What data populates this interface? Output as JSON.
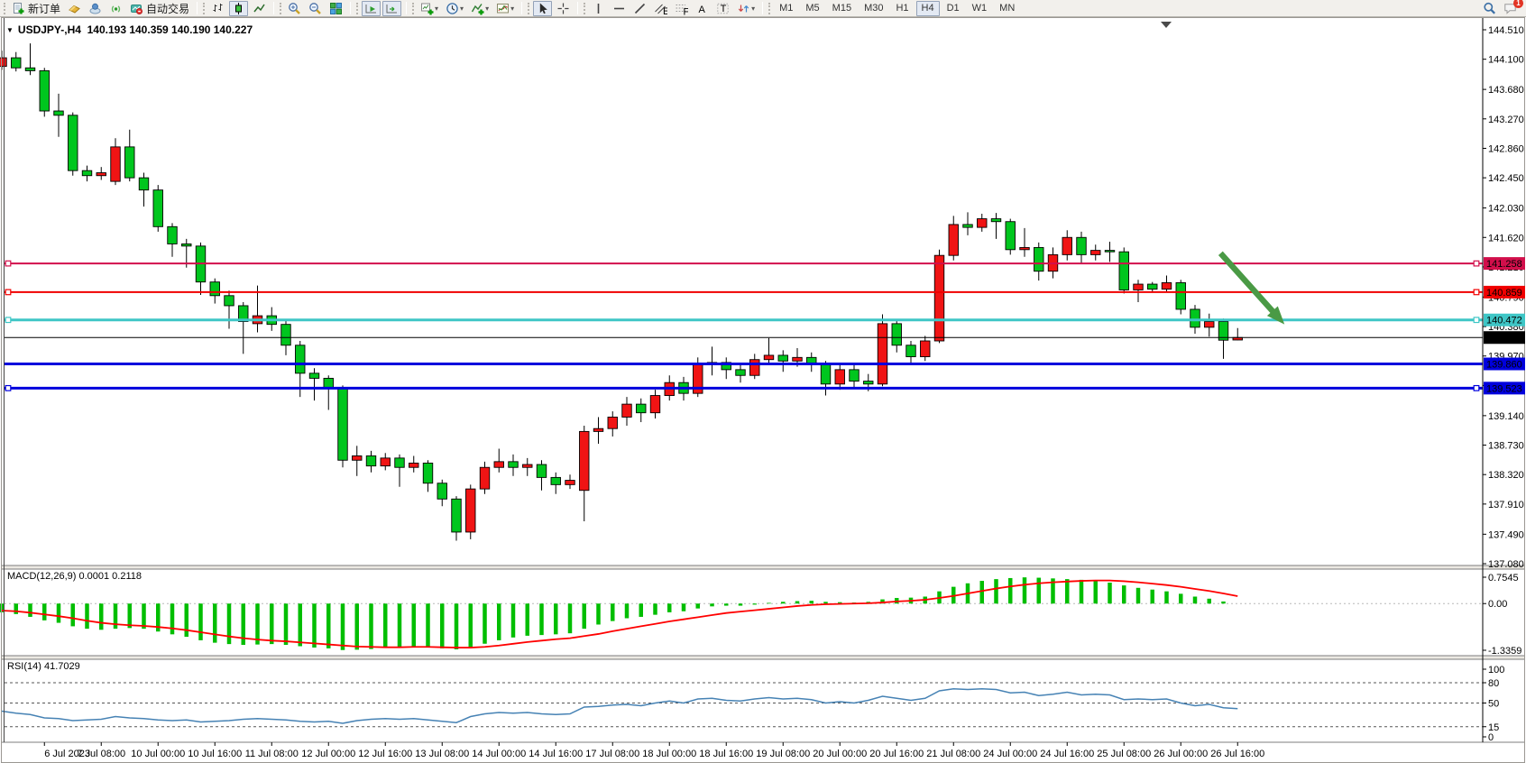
{
  "toolbar": {
    "groups": [
      {
        "items": [
          {
            "name": "new-order",
            "icon": "new-order-icon",
            "label": "新订单"
          },
          {
            "name": "market-watch",
            "icon": "gold-bar-icon"
          },
          {
            "name": "virtual-hosting",
            "icon": "hosting-icon"
          },
          {
            "name": "signals",
            "icon": "signal-icon"
          },
          {
            "name": "autotrading",
            "icon": "autotrade-icon",
            "label": "自动交易"
          }
        ]
      },
      {
        "items": [
          {
            "name": "bar-chart-mode",
            "icon": "bar-chart-icon"
          },
          {
            "name": "candlestick-mode",
            "icon": "candlestick-icon",
            "active": true
          },
          {
            "name": "line-chart-mode",
            "icon": "line-chart-icon"
          }
        ]
      },
      {
        "items": [
          {
            "name": "zoom-in",
            "icon": "zoom-in-icon"
          },
          {
            "name": "zoom-out",
            "icon": "zoom-out-icon"
          },
          {
            "name": "tile-windows",
            "icon": "tile-windows-icon"
          }
        ]
      },
      {
        "items": [
          {
            "name": "auto-scroll",
            "icon": "auto-scroll-icon",
            "active": true
          },
          {
            "name": "chart-shift",
            "icon": "chart-shift-icon",
            "active": true
          }
        ]
      },
      {
        "items": [
          {
            "name": "new-chart",
            "icon": "new-chart-icon",
            "dropdown": true
          },
          {
            "name": "periods",
            "icon": "clock-icon",
            "dropdown": true
          },
          {
            "name": "indicators",
            "icon": "indicators-icon",
            "dropdown": true
          },
          {
            "name": "templates",
            "icon": "template-icon",
            "dropdown": true
          }
        ]
      },
      {
        "items": [
          {
            "name": "cursor",
            "icon": "cursor-icon",
            "active": true
          },
          {
            "name": "crosshair",
            "icon": "crosshair-icon"
          }
        ]
      },
      {
        "items": [
          {
            "name": "vertical-line",
            "icon": "vline-icon"
          },
          {
            "name": "horizontal-line",
            "icon": "hline-icon"
          },
          {
            "name": "trendline",
            "icon": "trendline-icon"
          },
          {
            "name": "equidistant-channel",
            "icon": "channel-icon"
          },
          {
            "name": "fibonacci-retracement",
            "icon": "fibonacci-icon"
          },
          {
            "name": "text",
            "icon": "text-icon"
          },
          {
            "name": "text-label",
            "icon": "label-icon"
          },
          {
            "name": "arrows",
            "icon": "arrows-icon",
            "dropdown": true
          }
        ]
      },
      {
        "items": [
          {
            "name": "tf-m1",
            "tf": "M1"
          },
          {
            "name": "tf-m5",
            "tf": "M5"
          },
          {
            "name": "tf-m15",
            "tf": "M15"
          },
          {
            "name": "tf-m30",
            "tf": "M30"
          },
          {
            "name": "tf-h1",
            "tf": "H1"
          },
          {
            "name": "tf-h4",
            "tf": "H4",
            "active": true
          },
          {
            "name": "tf-d1",
            "tf": "D1"
          },
          {
            "name": "tf-w1",
            "tf": "W1"
          },
          {
            "name": "tf-mn",
            "tf": "MN"
          }
        ]
      }
    ],
    "right": [
      {
        "name": "search",
        "icon": "search-icon"
      },
      {
        "name": "notifications",
        "icon": "chat-icon",
        "badge": "1"
      }
    ]
  },
  "chart": {
    "title_symbol": "USDJPY-,H4",
    "title_quote": "140.193 140.359 140.190 140.227",
    "macd_label": "MACD(12,26,9) 0.0001 0.2118",
    "rsi_label": "RSI(14) 41.7029"
  },
  "chart_data": {
    "type": "candlestick",
    "symbol": "USDJPY-",
    "period": "H4",
    "quote": {
      "open": "140.193",
      "high": "140.359",
      "low": "140.190",
      "close": "140.227"
    },
    "bull_color": "#f01414",
    "bear_color": "#00c61e",
    "scale": {
      "top_price": 144.51,
      "bottom_price": 137.08
    },
    "price_ticks": [
      "144.510",
      "144.100",
      "143.680",
      "143.270",
      "142.860",
      "142.450",
      "142.030",
      "141.620",
      "141.210",
      "140.790",
      "140.380",
      "139.970",
      "139.560",
      "139.140",
      "138.730",
      "138.320",
      "137.910",
      "137.490",
      "137.080"
    ],
    "time_labels": [
      "6 Jul 2023",
      "7 Jul 08:00",
      "10 Jul 00:00",
      "10 Jul 16:00",
      "11 Jul 08:00",
      "12 Jul 00:00",
      "12 Jul 16:00",
      "13 Jul 08:00",
      "14 Jul 00:00",
      "14 Jul 16:00",
      "17 Jul 08:00",
      "18 Jul 00:00",
      "18 Jul 16:00",
      "19 Jul 08:00",
      "20 Jul 00:00",
      "20 Jul 16:00",
      "21 Jul 08:00",
      "24 Jul 00:00",
      "24 Jul 16:00",
      "25 Jul 08:00",
      "26 Jul 00:00",
      "26 Jul 16:00"
    ],
    "first_label_bar": 3,
    "label_every_bars": 4,
    "candles": [
      [
        144.0,
        144.22,
        143.95,
        144.12
      ],
      [
        144.12,
        144.2,
        143.93,
        143.98
      ],
      [
        143.98,
        144.32,
        143.88,
        143.94
      ],
      [
        143.94,
        143.98,
        143.3,
        143.38
      ],
      [
        143.38,
        143.62,
        143.02,
        143.32
      ],
      [
        143.32,
        143.36,
        142.48,
        142.55
      ],
      [
        142.55,
        142.62,
        142.4,
        142.48
      ],
      [
        142.48,
        142.6,
        142.42,
        142.52
      ],
      [
        142.4,
        143.0,
        142.35,
        142.88
      ],
      [
        142.88,
        143.12,
        142.4,
        142.45
      ],
      [
        142.45,
        142.52,
        142.05,
        142.28
      ],
      [
        142.28,
        142.35,
        141.7,
        141.77
      ],
      [
        141.77,
        141.82,
        141.35,
        141.53
      ],
      [
        141.53,
        141.6,
        141.2,
        141.5
      ],
      [
        141.5,
        141.55,
        140.82,
        141.0
      ],
      [
        141.0,
        141.05,
        140.7,
        140.81
      ],
      [
        140.81,
        140.88,
        140.35,
        140.67
      ],
      [
        140.67,
        140.72,
        140.0,
        140.45
      ],
      [
        140.42,
        140.95,
        140.3,
        140.53
      ],
      [
        140.53,
        140.65,
        140.32,
        140.41
      ],
      [
        140.41,
        140.48,
        139.98,
        140.12
      ],
      [
        140.12,
        140.18,
        139.4,
        139.73
      ],
      [
        139.73,
        139.8,
        139.35,
        139.66
      ],
      [
        139.66,
        139.7,
        139.22,
        139.53
      ],
      [
        139.53,
        139.56,
        138.42,
        138.52
      ],
      [
        138.52,
        138.72,
        138.3,
        138.58
      ],
      [
        138.58,
        138.65,
        138.35,
        138.44
      ],
      [
        138.44,
        138.62,
        138.38,
        138.55
      ],
      [
        138.55,
        138.6,
        138.15,
        138.42
      ],
      [
        138.42,
        138.58,
        138.35,
        138.48
      ],
      [
        138.48,
        138.52,
        138.08,
        138.2
      ],
      [
        138.2,
        138.25,
        137.88,
        137.98
      ],
      [
        137.98,
        138.02,
        137.4,
        137.52
      ],
      [
        137.52,
        138.18,
        137.42,
        138.12
      ],
      [
        138.12,
        138.5,
        138.05,
        138.42
      ],
      [
        138.42,
        138.68,
        138.35,
        138.5
      ],
      [
        138.5,
        138.6,
        138.3,
        138.42
      ],
      [
        138.42,
        138.55,
        138.3,
        138.46
      ],
      [
        138.46,
        138.52,
        138.1,
        138.28
      ],
      [
        138.28,
        138.35,
        138.05,
        138.18
      ],
      [
        138.18,
        138.32,
        138.12,
        138.24
      ],
      [
        138.1,
        139.0,
        137.67,
        138.92
      ],
      [
        138.92,
        139.12,
        138.75,
        138.96
      ],
      [
        138.96,
        139.2,
        138.85,
        139.12
      ],
      [
        139.12,
        139.4,
        139.0,
        139.3
      ],
      [
        139.3,
        139.38,
        139.05,
        139.18
      ],
      [
        139.18,
        139.5,
        139.1,
        139.42
      ],
      [
        139.42,
        139.7,
        139.35,
        139.6
      ],
      [
        139.6,
        139.68,
        139.35,
        139.45
      ],
      [
        139.45,
        139.95,
        139.4,
        139.85
      ],
      [
        139.85,
        140.1,
        139.7,
        139.88
      ],
      [
        139.88,
        139.95,
        139.65,
        139.78
      ],
      [
        139.78,
        139.85,
        139.6,
        139.7
      ],
      [
        139.7,
        140.0,
        139.65,
        139.92
      ],
      [
        139.92,
        140.22,
        139.85,
        139.98
      ],
      [
        139.98,
        140.05,
        139.75,
        139.9
      ],
      [
        139.9,
        140.08,
        139.82,
        139.95
      ],
      [
        139.95,
        140.02,
        139.75,
        139.85
      ],
      [
        139.85,
        139.9,
        139.42,
        139.58
      ],
      [
        139.58,
        139.85,
        139.5,
        139.78
      ],
      [
        139.78,
        139.85,
        139.52,
        139.62
      ],
      [
        139.62,
        139.72,
        139.48,
        139.58
      ],
      [
        139.58,
        140.55,
        139.55,
        140.42
      ],
      [
        140.42,
        140.48,
        140.02,
        140.12
      ],
      [
        140.12,
        140.18,
        139.85,
        139.96
      ],
      [
        139.96,
        140.25,
        139.9,
        140.18
      ],
      [
        140.18,
        141.45,
        140.15,
        141.37
      ],
      [
        141.37,
        141.92,
        141.3,
        141.8
      ],
      [
        141.8,
        141.97,
        141.65,
        141.76
      ],
      [
        141.76,
        141.95,
        141.7,
        141.88
      ],
      [
        141.88,
        141.96,
        141.6,
        141.84
      ],
      [
        141.84,
        141.88,
        141.38,
        141.45
      ],
      [
        141.45,
        141.75,
        141.35,
        141.48
      ],
      [
        141.48,
        141.55,
        141.02,
        141.15
      ],
      [
        141.15,
        141.48,
        141.05,
        141.38
      ],
      [
        141.38,
        141.72,
        141.3,
        141.62
      ],
      [
        141.62,
        141.7,
        141.25,
        141.38
      ],
      [
        141.38,
        141.52,
        141.3,
        141.44
      ],
      [
        141.44,
        141.56,
        141.28,
        141.42
      ],
      [
        141.42,
        141.48,
        140.84,
        140.89
      ],
      [
        140.89,
        141.03,
        140.72,
        140.97
      ],
      [
        140.97,
        141.0,
        140.85,
        140.9
      ],
      [
        140.9,
        141.09,
        140.86,
        140.99
      ],
      [
        140.99,
        141.03,
        140.55,
        140.62
      ],
      [
        140.62,
        140.68,
        140.28,
        140.37
      ],
      [
        140.37,
        140.56,
        140.24,
        140.45
      ],
      [
        140.45,
        140.49,
        139.93,
        140.19
      ],
      [
        140.193,
        140.359,
        140.19,
        140.227
      ]
    ],
    "hlines": [
      {
        "price": 141.258,
        "label": "141.258",
        "color": "#d20f4b",
        "width": 2,
        "selected": true
      },
      {
        "price": 140.859,
        "label": "140.859",
        "color": "#f00000",
        "width": 2,
        "selected": true
      },
      {
        "price": 140.472,
        "label": "140.472",
        "color": "#3ec6c6",
        "width": 3,
        "selected": true
      },
      {
        "price": 139.86,
        "label": "139.860",
        "color": "#0000dd",
        "width": 3,
        "selected": false
      },
      {
        "price": 139.523,
        "label": "139.523",
        "color": "#0000dd",
        "width": 3,
        "selected": true
      }
    ],
    "last_price": {
      "value": 140.227,
      "label": "140.227",
      "color": "#000000"
    },
    "arrow": {
      "from_bar": 85.8,
      "from_price": 141.4,
      "to_bar": 90.3,
      "to_price": 140.41,
      "color": "#4a9a45"
    },
    "macd": {
      "title": "MACD(12,26,9)",
      "values": [
        "0.0001",
        "0.2118"
      ],
      "max": 0.7545,
      "min": -1.3359,
      "max_label": "0.7545",
      "zero_label": "0.00",
      "min_label": "-1.3359",
      "histogram_color": "#00be00",
      "signal_color": "#ff0000",
      "main": [
        -0.25,
        -0.3,
        -0.38,
        -0.48,
        -0.55,
        -0.65,
        -0.72,
        -0.75,
        -0.72,
        -0.7,
        -0.72,
        -0.8,
        -0.88,
        -0.95,
        -1.05,
        -1.12,
        -1.16,
        -1.18,
        -1.17,
        -1.16,
        -1.18,
        -1.22,
        -1.26,
        -1.28,
        -1.33,
        -1.32,
        -1.3,
        -1.27,
        -1.25,
        -1.22,
        -1.25,
        -1.28,
        -1.31,
        -1.25,
        -1.15,
        -1.05,
        -0.97,
        -0.92,
        -0.9,
        -0.88,
        -0.85,
        -0.72,
        -0.6,
        -0.5,
        -0.42,
        -0.38,
        -0.32,
        -0.25,
        -0.22,
        -0.14,
        -0.08,
        -0.06,
        -0.06,
        -0.03,
        0.02,
        0.05,
        0.07,
        0.08,
        0.05,
        0.04,
        0.03,
        0.05,
        0.12,
        0.16,
        0.17,
        0.2,
        0.35,
        0.48,
        0.58,
        0.65,
        0.7,
        0.73,
        0.75,
        0.74,
        0.72,
        0.7,
        0.68,
        0.65,
        0.6,
        0.52,
        0.45,
        0.4,
        0.35,
        0.28,
        0.2,
        0.14,
        0.06,
        0.0001
      ],
      "signal": [
        -0.2,
        -0.22,
        -0.26,
        -0.31,
        -0.36,
        -0.42,
        -0.49,
        -0.55,
        -0.59,
        -0.62,
        -0.64,
        -0.67,
        -0.71,
        -0.76,
        -0.82,
        -0.88,
        -0.94,
        -0.99,
        -1.03,
        -1.06,
        -1.08,
        -1.11,
        -1.14,
        -1.17,
        -1.2,
        -1.23,
        -1.24,
        -1.25,
        -1.25,
        -1.24,
        -1.24,
        -1.25,
        -1.26,
        -1.26,
        -1.24,
        -1.2,
        -1.15,
        -1.1,
        -1.06,
        -1.02,
        -0.99,
        -0.93,
        -0.87,
        -0.79,
        -0.72,
        -0.65,
        -0.58,
        -0.51,
        -0.45,
        -0.39,
        -0.33,
        -0.27,
        -0.23,
        -0.19,
        -0.15,
        -0.11,
        -0.07,
        -0.04,
        -0.02,
        -0.01,
        0.0,
        0.01,
        0.03,
        0.06,
        0.08,
        0.11,
        0.16,
        0.22,
        0.29,
        0.36,
        0.43,
        0.49,
        0.54,
        0.58,
        0.61,
        0.63,
        0.65,
        0.66,
        0.66,
        0.64,
        0.61,
        0.57,
        0.53,
        0.48,
        0.42,
        0.36,
        0.29,
        0.2118
      ]
    },
    "rsi": {
      "title": "RSI(14)",
      "value": "41.7029",
      "line_color": "#4682b4",
      "levels": [
        80,
        50,
        15
      ],
      "axis_labels": [
        "100",
        "80",
        "50",
        "15",
        "0"
      ],
      "series": [
        38,
        35,
        33,
        28,
        27,
        24,
        25,
        26,
        30,
        28,
        27,
        25,
        24,
        25,
        22,
        23,
        24,
        26,
        27,
        26,
        25,
        23,
        22,
        23,
        20,
        24,
        26,
        27,
        26,
        27,
        25,
        23,
        21,
        30,
        34,
        36,
        35,
        36,
        34,
        33,
        34,
        44,
        45,
        47,
        48,
        46,
        50,
        53,
        50,
        56,
        57,
        54,
        53,
        56,
        58,
        56,
        57,
        55,
        50,
        52,
        50,
        54,
        60,
        57,
        54,
        57,
        68,
        71,
        70,
        71,
        70,
        65,
        66,
        61,
        63,
        66,
        62,
        63,
        62,
        55,
        56,
        55,
        56,
        50,
        46,
        48,
        43,
        41.7
      ]
    }
  }
}
